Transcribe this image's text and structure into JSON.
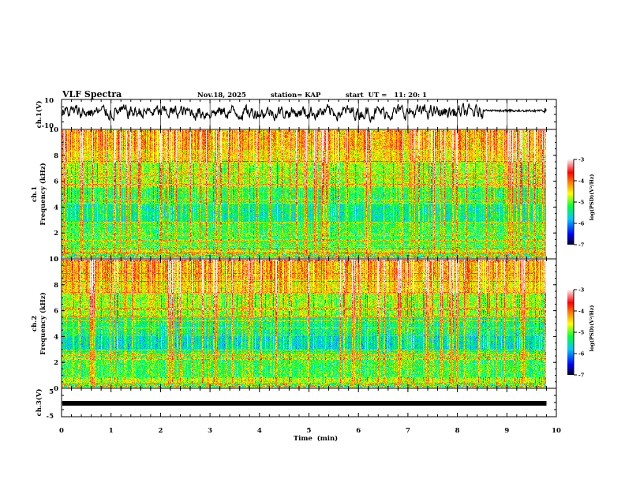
{
  "header": {
    "title": "VLF Spectra",
    "date": "Nov.18, 2025",
    "station": "station= KAP",
    "start": "start  UT =   11: 20: 1"
  },
  "chart_data": [
    {
      "type": "line",
      "name": "ch1-waveform",
      "ylabel": "ch.1(V)",
      "ylim": [
        -10,
        10
      ],
      "yticks": [
        "10",
        "-10"
      ],
      "xlim": [
        0,
        10
      ],
      "data_end_min": 9.8,
      "description_values": "noisy waveform fluctuating roughly between -5 and 8 V"
    },
    {
      "type": "heatmap",
      "name": "ch1-spectrogram",
      "ylabel_top": "ch.1",
      "ylabel": "Frequency (kHz)",
      "ylim": [
        0,
        10
      ],
      "yticks": [
        "0",
        "2",
        "4",
        "6",
        "8",
        "10"
      ],
      "xlim": [
        0,
        10
      ],
      "data_end_min": 9.8,
      "colorbar": {
        "label": "log(PSD)(V²/Hz)",
        "range": [
          -7,
          -3
        ],
        "ticks": [
          "-3",
          "-4",
          "-5",
          "-6",
          "-7"
        ]
      }
    },
    {
      "type": "heatmap",
      "name": "ch2-spectrogram",
      "ylabel_top": "ch.2",
      "ylabel": "Frequency (kHz)",
      "ylim": [
        0,
        10
      ],
      "yticks": [
        "0",
        "2",
        "4",
        "6",
        "8",
        "10"
      ],
      "xlim": [
        0,
        10
      ],
      "data_end_min": 9.8,
      "colorbar": {
        "label": "log(PSD)(V²/Hz)",
        "range": [
          -7,
          -3
        ],
        "ticks": [
          "-3",
          "-4",
          "-5",
          "-6",
          "-7"
        ]
      }
    },
    {
      "type": "line",
      "name": "ch3-waveform",
      "ylabel": "ch.3(V)",
      "ylim": [
        -5,
        5
      ],
      "yticks": [
        "5",
        "-5"
      ],
      "xlim": [
        0,
        10
      ],
      "data_end_min": 9.8,
      "level_value": -1.5
    }
  ],
  "x_axis": {
    "label": "Time  (min)",
    "ticks": [
      "0",
      "1",
      "2",
      "3",
      "4",
      "5",
      "6",
      "7",
      "8",
      "9",
      "10"
    ]
  },
  "colors": {
    "axis": "#000000",
    "colormap": [
      "#000033",
      "#0000ff",
      "#00c8ff",
      "#00ff00",
      "#ffff00",
      "#ff8000",
      "#ff0000",
      "#ffffff"
    ]
  }
}
